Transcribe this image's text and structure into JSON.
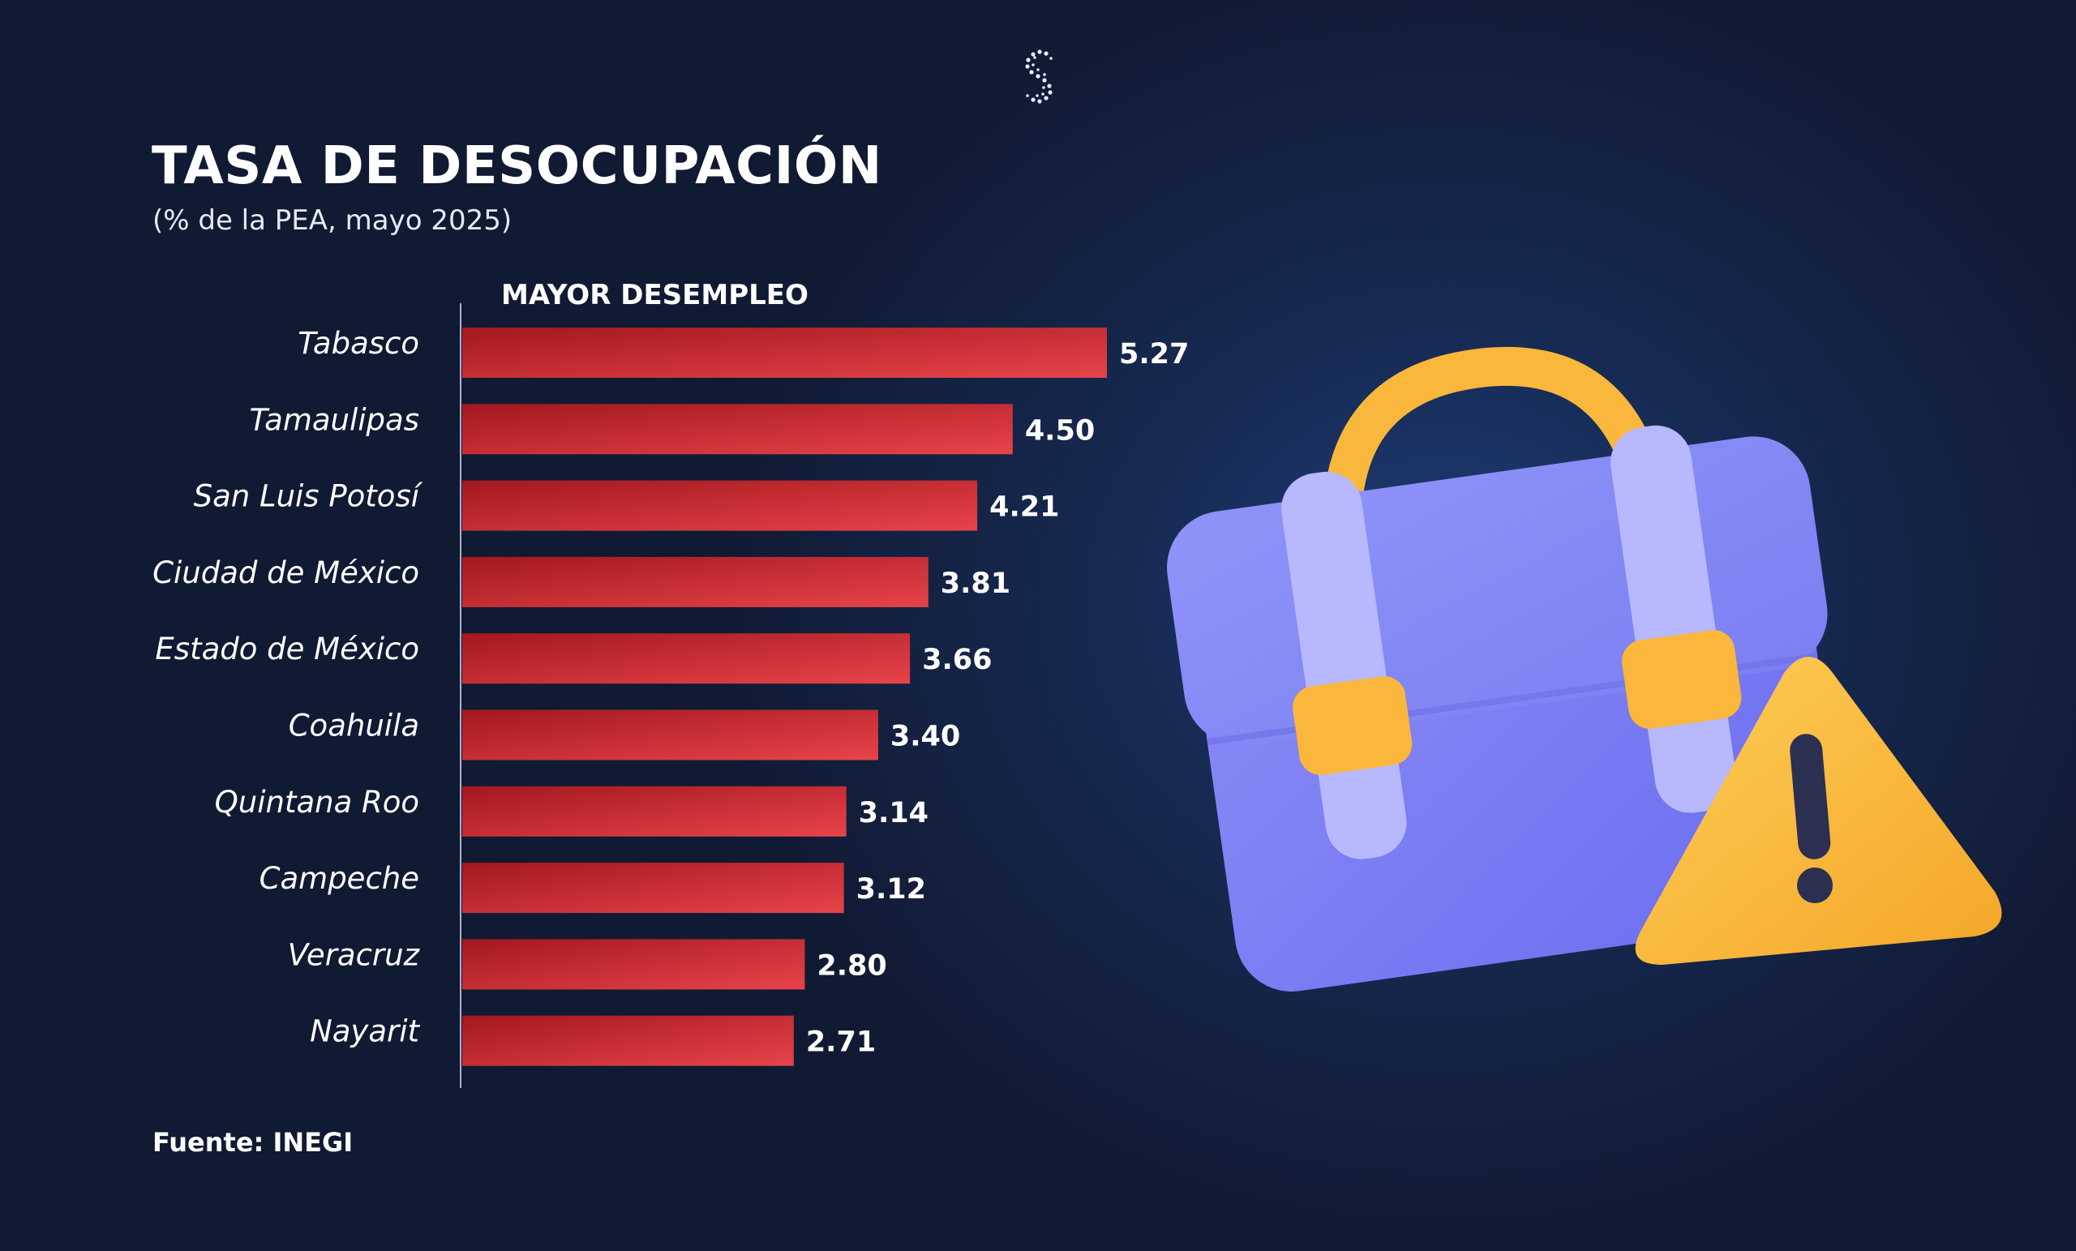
{
  "chart_data": {
    "type": "bar",
    "orientation": "horizontal",
    "title": "TASA DE DESOCUPACIÓN",
    "subtitle": "(% de la PEA, mayo 2025)",
    "group_label": "MAYOR DESEMPLEO",
    "categories": [
      "Tabasco",
      "Tamaulipas",
      "San Luis Potosí",
      "Ciudad de México",
      "Estado de México",
      "Coahuila",
      "Quintana Roo",
      "Campeche",
      "Veracruz",
      "Nayarit"
    ],
    "values": [
      5.27,
      4.5,
      4.21,
      3.81,
      3.66,
      3.4,
      3.14,
      3.12,
      2.8,
      2.71
    ],
    "value_labels": [
      "5.27",
      "4.50",
      "4.21",
      "3.81",
      "3.66",
      "3.40",
      "3.14",
      "3.12",
      "2.80",
      "2.71"
    ],
    "xlim": [
      0,
      5.27
    ],
    "grid": false,
    "legend": "none",
    "bar_color_start": "#a3181f",
    "bar_color_end": "#e8434a"
  },
  "source": "Fuente: INEGI",
  "illustration": {
    "icon": "briefcase-warning-icon",
    "briefcase_color": "#7b7df2",
    "accent_color": "#fbb73c"
  },
  "logo": {
    "icon": "s-dots-logo-icon"
  },
  "background": "#111a33"
}
